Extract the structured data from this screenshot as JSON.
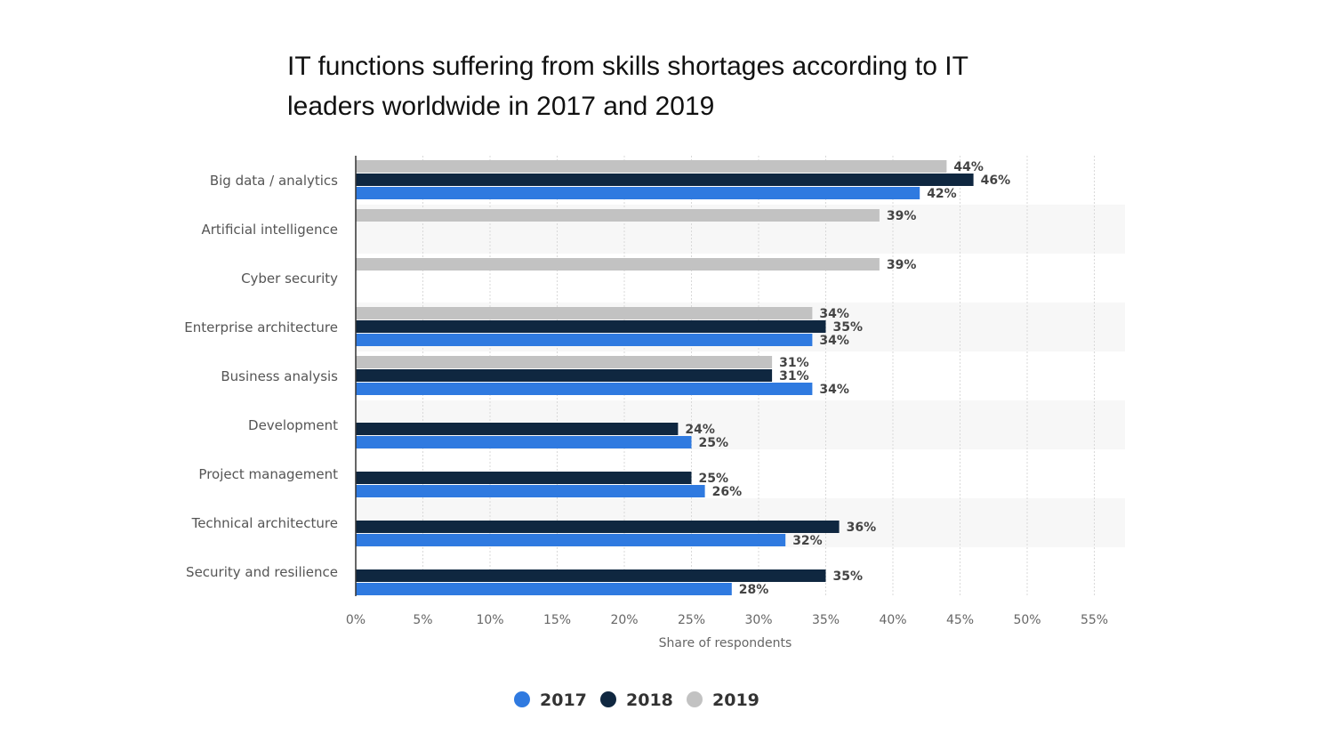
{
  "chart_data": {
    "type": "bar",
    "orientation": "horizontal",
    "title": "IT functions suffering from skills shortages according to IT leaders worldwide in 2017 and 2019",
    "xlabel": "Share of respondents",
    "ylabel": "",
    "xlim": [
      0,
      55
    ],
    "x_ticks": [
      "0%",
      "5%",
      "10%",
      "15%",
      "20%",
      "25%",
      "30%",
      "35%",
      "40%",
      "45%",
      "50%",
      "55%"
    ],
    "grid": true,
    "legend_position": "bottom",
    "categories": [
      "Big data / analytics",
      "Artificial intelligence",
      "Cyber security",
      "Enterprise architecture",
      "Business analysis",
      "Development",
      "Project management",
      "Technical architecture",
      "Security and resilience"
    ],
    "series": [
      {
        "name": "2017",
        "color": "#2f7ae0",
        "values": [
          42,
          null,
          null,
          34,
          34,
          25,
          26,
          32,
          28
        ]
      },
      {
        "name": "2018",
        "color": "#0f2740",
        "values": [
          46,
          null,
          null,
          35,
          31,
          24,
          25,
          36,
          35
        ]
      },
      {
        "name": "2019",
        "color": "#c2c2c2",
        "values": [
          44,
          39,
          39,
          34,
          31,
          null,
          null,
          null,
          null
        ]
      }
    ]
  }
}
